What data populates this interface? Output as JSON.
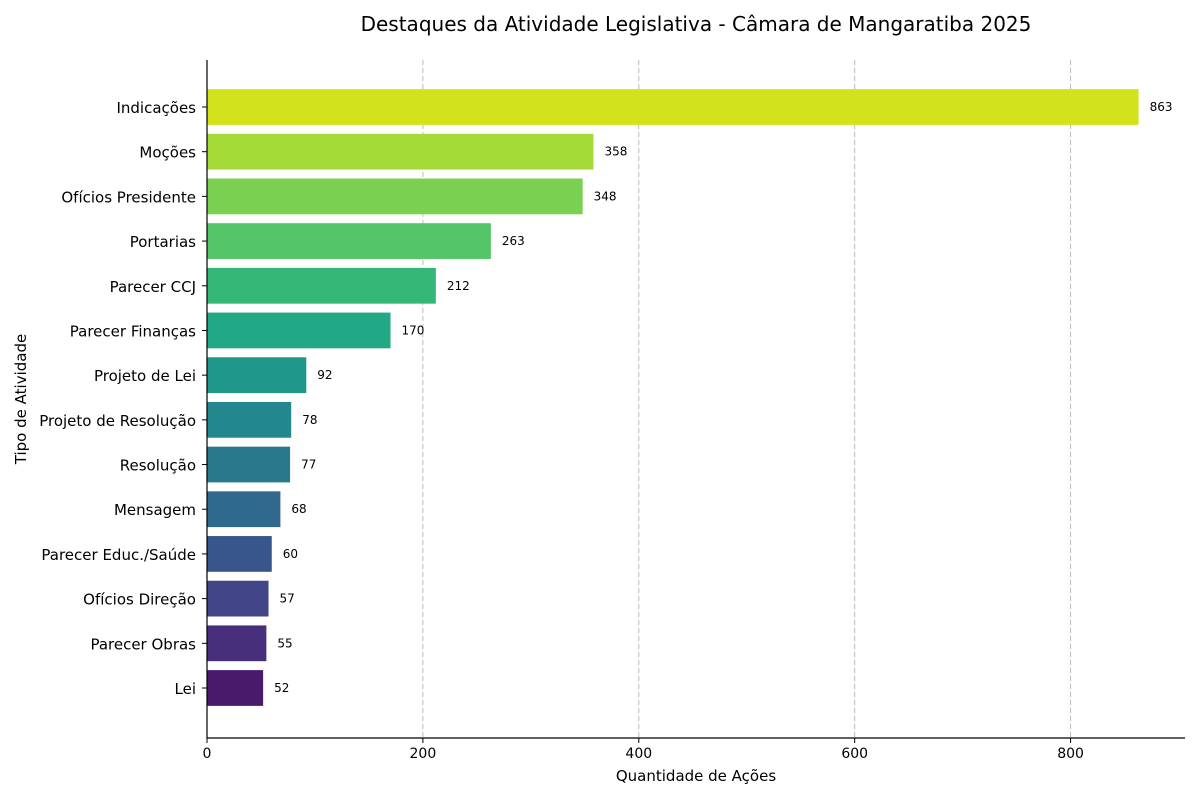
{
  "chart_data": {
    "type": "bar",
    "orientation": "horizontal",
    "title": "Destaques da Atividade Legislativa - Câmara de Mangaratiba 2025",
    "xlabel": "Quantidade de Ações",
    "ylabel": "Tipo de Atividade",
    "xlim": [
      0,
      906
    ],
    "xticks": [
      0,
      200,
      400,
      600,
      800
    ],
    "grid": "x-dashed",
    "categories": [
      "Indicações",
      "Moções",
      "Ofícios Presidente",
      "Portarias",
      "Parecer CCJ",
      "Parecer Finanças",
      "Projeto de Lei",
      "Projeto de Resolução",
      "Resolução",
      "Mensagem",
      "Parecer Educ./Saúde",
      "Ofícios Direção",
      "Parecer Obras",
      "Lei"
    ],
    "values": [
      863,
      358,
      348,
      263,
      212,
      170,
      92,
      78,
      77,
      68,
      60,
      57,
      55,
      52
    ],
    "colors": [
      "#d2e21b",
      "#a5db36",
      "#7ad151",
      "#54c568",
      "#35b779",
      "#22a884",
      "#1f988b",
      "#23888e",
      "#2a788e",
      "#31688e",
      "#39568c",
      "#414487",
      "#472f7d",
      "#481a6c"
    ]
  }
}
